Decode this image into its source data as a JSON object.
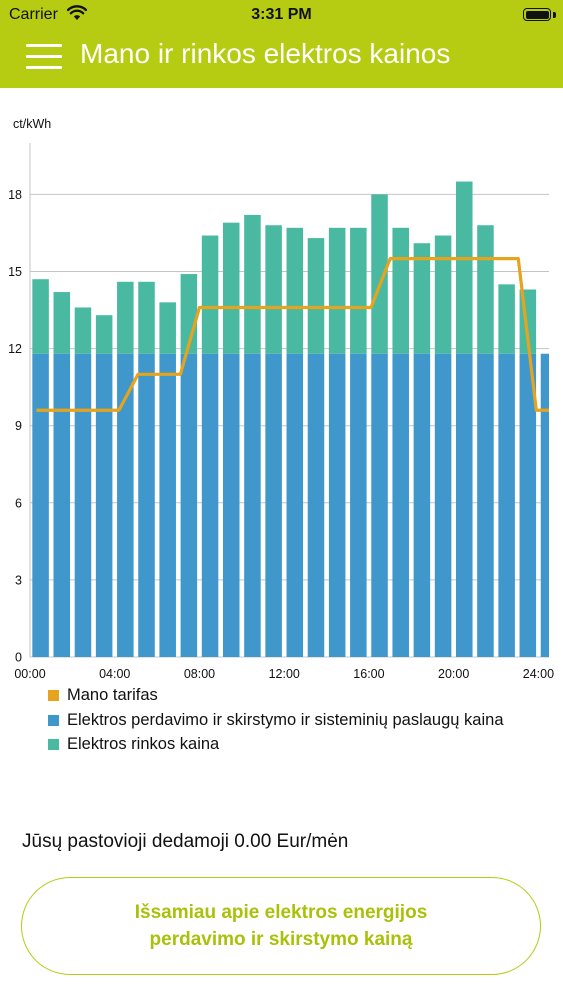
{
  "status_bar": {
    "carrier": "Carrier",
    "time": "3:31 PM"
  },
  "header": {
    "title": "Mano ir rinkos elektros kainos"
  },
  "colors": {
    "accent": "#b5cc12",
    "tariff_line": "#e6a41e",
    "transmission": "#3f97cc",
    "market": "#49b9a1"
  },
  "icons": {
    "menu": "hamburger-menu-icon",
    "wifi": "wifi-icon",
    "battery": "battery-icon"
  },
  "chart_data": {
    "type": "bar",
    "stacked": true,
    "ylabel": "ct/kWh",
    "ylim": [
      0,
      20
    ],
    "yticks": [
      0,
      3,
      6,
      9,
      12,
      15,
      18
    ],
    "xlim": [
      0,
      24.5
    ],
    "xtick_labels": [
      "00:00",
      "04:00",
      "08:00",
      "12:00",
      "16:00",
      "20:00",
      "24:00"
    ],
    "xtick_values": [
      0,
      4,
      8,
      12,
      16,
      20,
      24
    ],
    "hours": [
      0,
      1,
      2,
      3,
      4,
      5,
      6,
      7,
      8,
      9,
      10,
      11,
      12,
      13,
      14,
      15,
      16,
      17,
      18,
      19,
      20,
      21,
      22,
      23,
      24
    ],
    "series": [
      {
        "name": "Elektros perdavimo ir skirstymo ir sisteminių paslaugų kaina",
        "values": [
          11.8,
          11.8,
          11.8,
          11.8,
          11.8,
          11.8,
          11.8,
          11.8,
          11.8,
          11.8,
          11.8,
          11.8,
          11.8,
          11.8,
          11.8,
          11.8,
          11.8,
          11.8,
          11.8,
          11.8,
          11.8,
          11.8,
          11.8,
          11.8,
          11.8
        ]
      },
      {
        "name": "Elektros rinkos kaina",
        "values": [
          2.9,
          2.4,
          1.8,
          1.5,
          2.8,
          2.8,
          2.0,
          3.1,
          4.6,
          5.1,
          5.4,
          5.0,
          4.9,
          4.5,
          4.9,
          4.9,
          6.2,
          4.9,
          4.3,
          4.6,
          6.7,
          5.0,
          2.7,
          2.5,
          0
        ]
      }
    ],
    "tariff": {
      "name": "Mano tarifas",
      "x": [
        0.3,
        4.2,
        5.1,
        7.1,
        8.0,
        16.1,
        17.0,
        23.05,
        23.9,
        24.5
      ],
      "y": [
        9.6,
        9.6,
        11.0,
        11.0,
        13.6,
        13.6,
        15.5,
        15.5,
        9.6,
        9.6
      ]
    },
    "legend": [
      {
        "label": "Mano tarifas",
        "color": "#e6a41e"
      },
      {
        "label": "Elektros perdavimo ir skirstymo ir sisteminių paslaugų kaina",
        "color": "#3f97cc"
      },
      {
        "label": "Elektros rinkos kaina",
        "color": "#49b9a1"
      }
    ],
    "legend_position": "bottom",
    "grid": true
  },
  "summary": {
    "fixed_part": "Jūsų pastovioji dedamoji 0.00 Eur/mėn"
  },
  "more_button": {
    "label": "Išsamiau apie elektros energijos\nperdavimo ir skirstymo kainą"
  }
}
